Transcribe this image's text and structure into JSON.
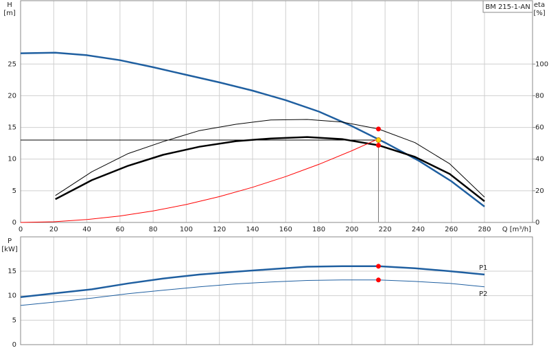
{
  "chart_data": [
    {
      "type": "line",
      "legend_text": "BM 215-1-AN",
      "ylabel": [
        "H",
        "[m]"
      ],
      "y2label": [
        "eta",
        "[%]"
      ],
      "xlabel": "Q [m³/h]",
      "xlim": [
        0,
        309
      ],
      "xticks": [
        0,
        20,
        40,
        60,
        80,
        100,
        120,
        140,
        160,
        180,
        200,
        220,
        240,
        260,
        280
      ],
      "ylim": [
        0,
        35
      ],
      "yticks": [
        0,
        5,
        10,
        15,
        20,
        25
      ],
      "y2lim": [
        0,
        140
      ],
      "y2ticks": [
        0,
        20,
        40,
        60,
        80,
        100
      ],
      "grid": true,
      "series": [
        {
          "color": "#1f5fa0",
          "width": 2.5,
          "x": [
            0,
            21,
            40,
            60,
            80,
            100,
            120,
            140,
            160,
            180,
            200,
            220,
            240,
            260,
            280
          ],
          "values": [
            26.7,
            26.8,
            26.4,
            25.6,
            24.5,
            23.3,
            22.1,
            20.8,
            19.3,
            17.5,
            15.2,
            12.6,
            9.8,
            6.5,
            2.5
          ]
        },
        {
          "color": "#000000",
          "width": 1,
          "axis": "y2",
          "x": [
            21,
            43,
            65,
            86,
            108,
            130,
            151,
            173,
            194,
            216,
            238,
            259,
            280
          ],
          "values": [
            17,
            32,
            43.5,
            51,
            58,
            62,
            64.7,
            65,
            63.4,
            59,
            50.4,
            37,
            16
          ]
        },
        {
          "color": "#000000",
          "width": 2.5,
          "axis": "y2",
          "x": [
            21,
            43,
            65,
            86,
            108,
            130,
            151,
            173,
            194,
            216,
            238,
            259,
            280
          ],
          "values": [
            14.7,
            26.7,
            35.8,
            42.7,
            47.8,
            51.3,
            53,
            53.9,
            52.6,
            48.7,
            41.4,
            30.6,
            13.4
          ]
        },
        {
          "color": "#ff0000",
          "width": 1,
          "x": [
            0,
            20,
            40,
            60,
            80,
            100,
            120,
            140,
            160,
            180,
            200,
            216
          ],
          "values": [
            0,
            0.11,
            0.45,
            1.02,
            1.81,
            2.83,
            4.07,
            5.55,
            7.24,
            9.17,
            11.32,
            13.2
          ]
        }
      ],
      "duty_point": {
        "x": 216,
        "y": 13
      },
      "points": [
        {
          "x": 216,
          "y": 59,
          "axis": "y2",
          "color": "#ff0000"
        },
        {
          "x": 216,
          "y": 48.7,
          "axis": "y2",
          "color": "#ff0000"
        },
        {
          "x": 216,
          "y": 13,
          "color": "#ffd400"
        }
      ]
    },
    {
      "type": "line",
      "ylabel": [
        "P",
        "[kW]"
      ],
      "xlim": [
        0,
        309
      ],
      "xticks": [
        0,
        20,
        40,
        60,
        80,
        100,
        120,
        140,
        160,
        180,
        200,
        220,
        240,
        260,
        280
      ],
      "show_xtick_labels": false,
      "ylim": [
        0,
        22
      ],
      "yticks": [
        0,
        5,
        10,
        15
      ],
      "grid": true,
      "series": [
        {
          "name": "P1",
          "color": "#1f5fa0",
          "width": 2.5,
          "x": [
            0,
            21,
            43,
            65,
            86,
            108,
            130,
            151,
            173,
            194,
            216,
            238,
            259,
            280
          ],
          "values": [
            9.7,
            10.5,
            11.3,
            12.5,
            13.5,
            14.3,
            14.9,
            15.4,
            15.9,
            16.0,
            16.0,
            15.6,
            15.0,
            14.3
          ]
        },
        {
          "name": "P2",
          "color": "#1f5fa0",
          "width": 1,
          "x": [
            0,
            21,
            43,
            65,
            86,
            108,
            130,
            151,
            173,
            194,
            216,
            238,
            259,
            280
          ],
          "values": [
            8.0,
            8.7,
            9.5,
            10.4,
            11.1,
            11.8,
            12.4,
            12.8,
            13.1,
            13.2,
            13.2,
            12.9,
            12.5,
            11.8
          ]
        }
      ],
      "points": [
        {
          "x": 216,
          "y": 16.0,
          "color": "#ff0000"
        },
        {
          "x": 216,
          "y": 13.2,
          "color": "#ff0000"
        }
      ]
    }
  ]
}
